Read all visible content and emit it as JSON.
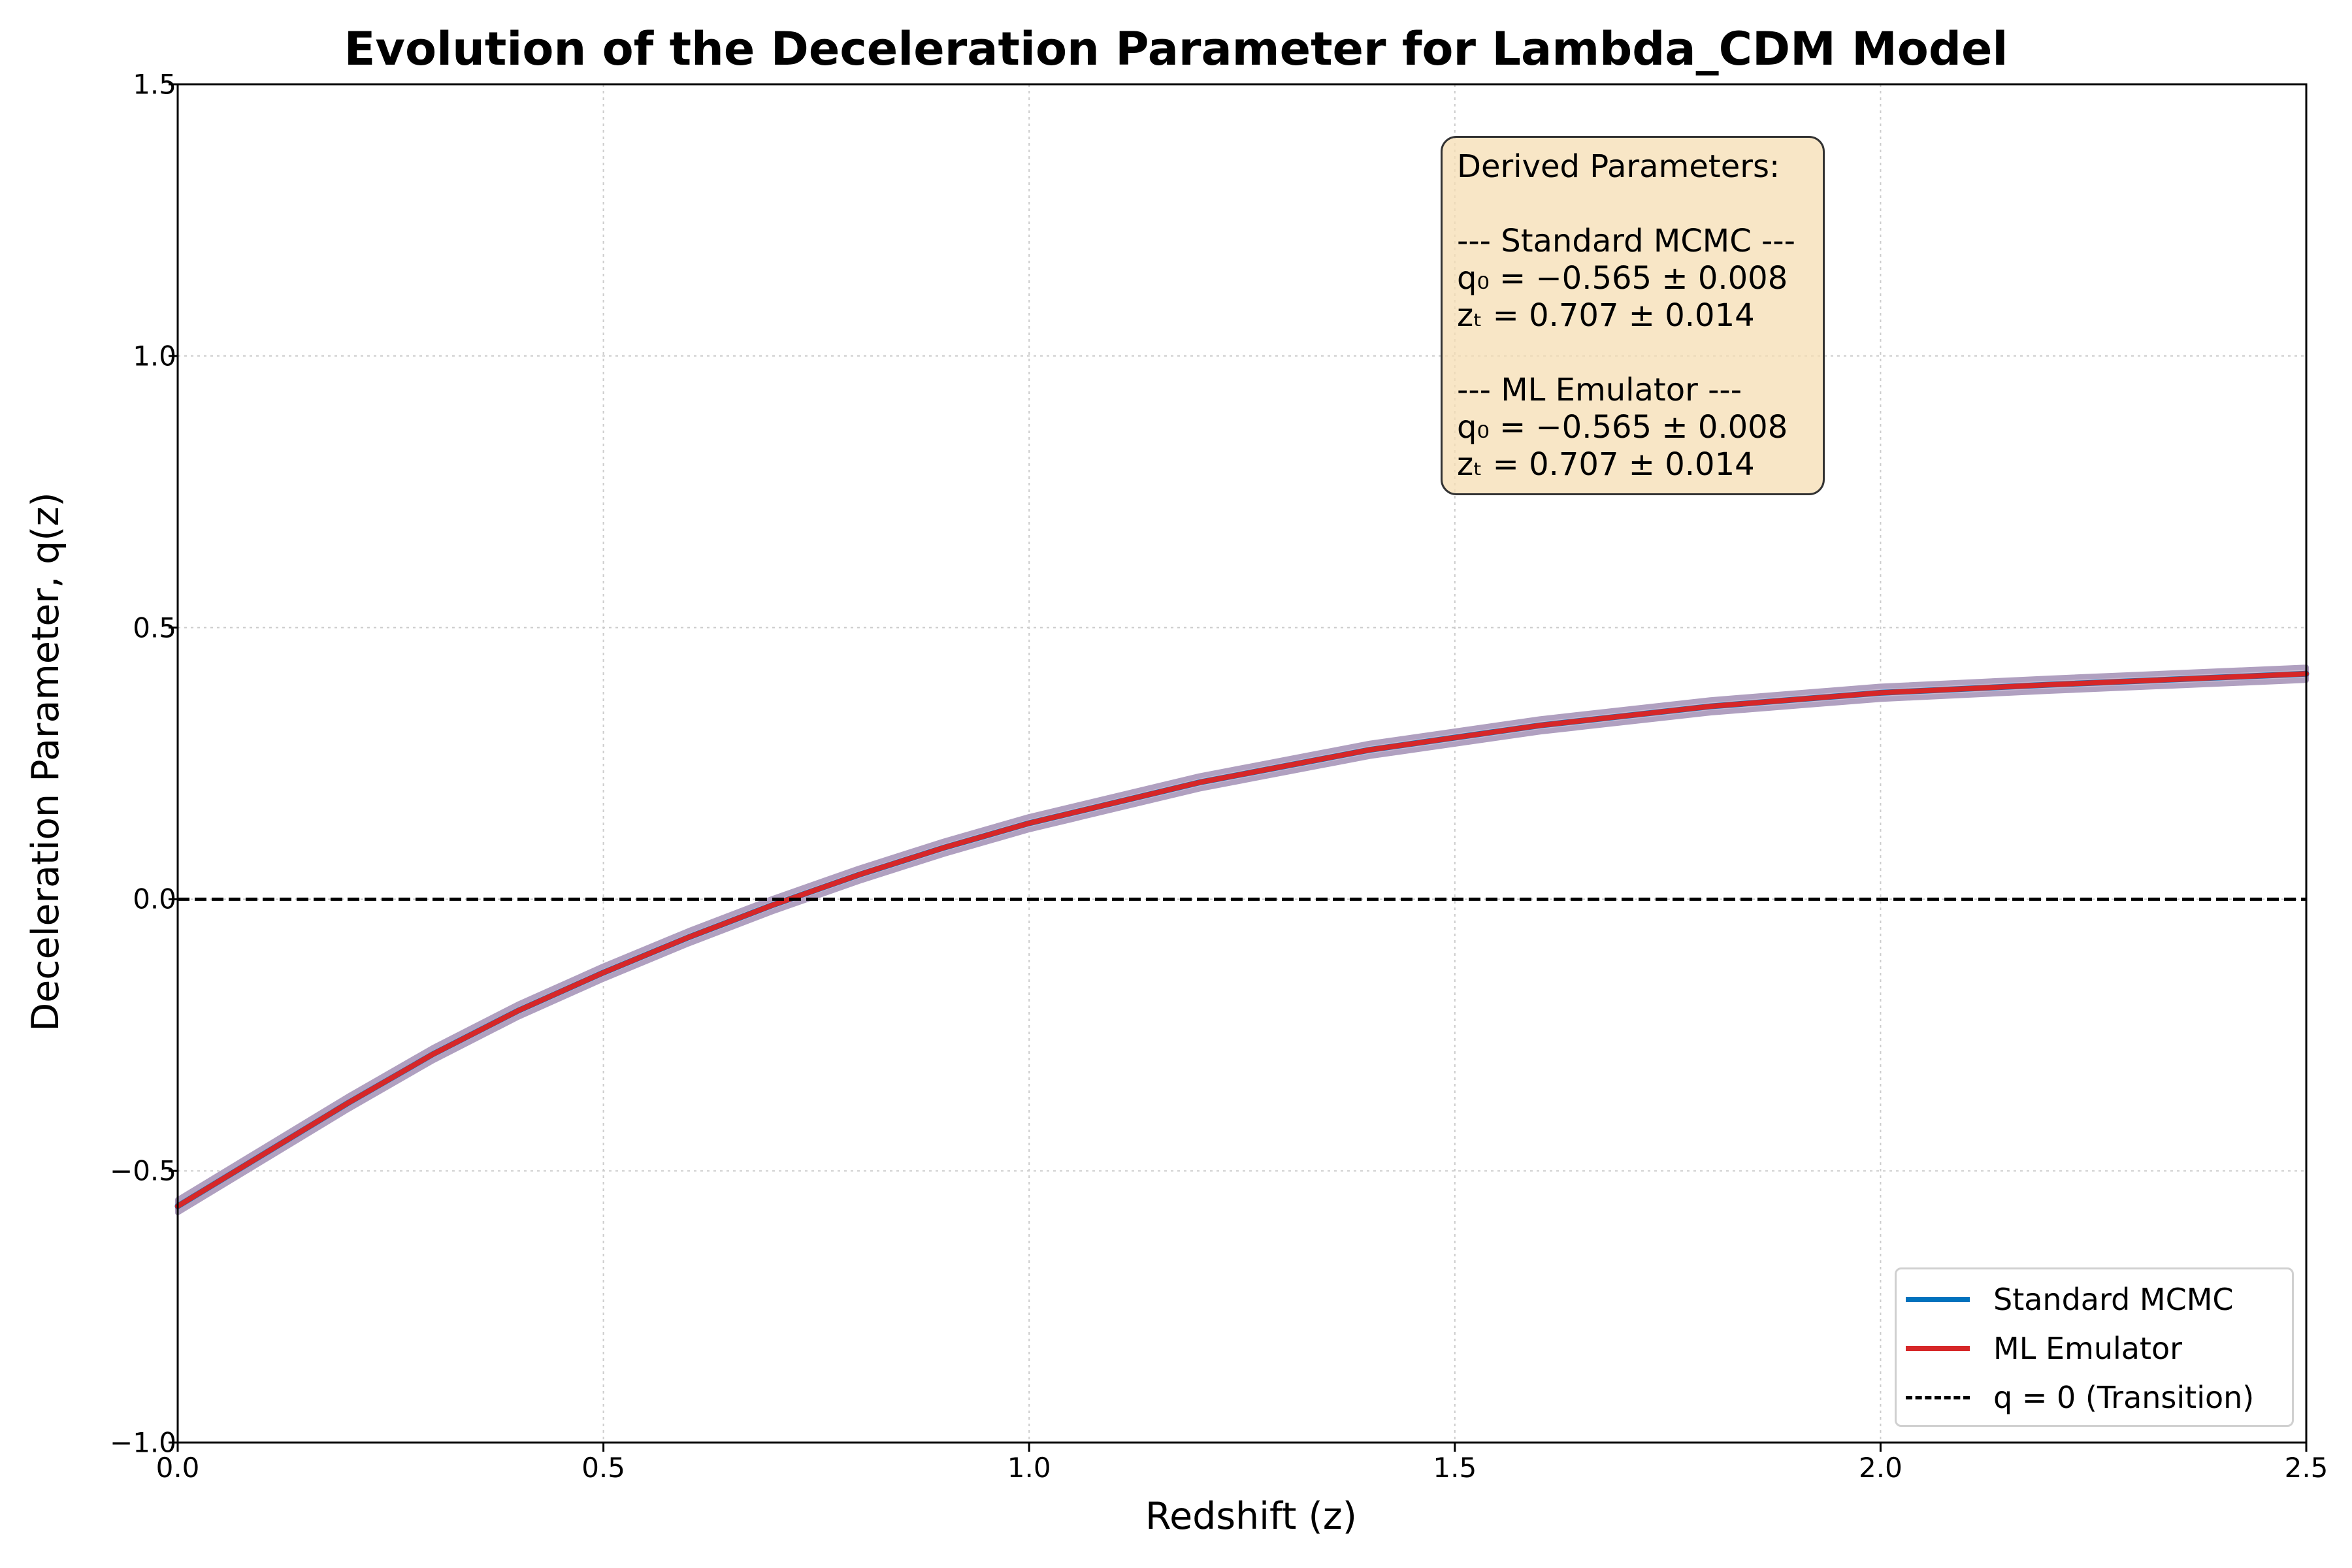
{
  "chart_data": {
    "type": "line",
    "title": "Evolution of the Deceleration Parameter for Lambda_CDM Model",
    "xlabel": "Redshift (z)",
    "ylabel": "Deceleration Parameter, q(z)",
    "xlim": [
      0.0,
      2.5
    ],
    "ylim": [
      -1.0,
      1.5
    ],
    "x_ticks": [
      "0.0",
      "0.5",
      "1.0",
      "1.5",
      "2.0",
      "2.5"
    ],
    "y_ticks": [
      "−1.0",
      "−0.5",
      "0.0",
      "0.5",
      "1.0",
      "1.5"
    ],
    "x_tick_values": [
      0.0,
      0.5,
      1.0,
      1.5,
      2.0,
      2.5
    ],
    "y_tick_values": [
      -1.0,
      -0.5,
      0.0,
      0.5,
      1.0,
      1.5
    ],
    "grid": true,
    "x": [
      0.0,
      0.1,
      0.2,
      0.3,
      0.4,
      0.5,
      0.6,
      0.7,
      0.8,
      0.9,
      1.0,
      1.2,
      1.4,
      1.6,
      1.8,
      2.0,
      2.2,
      2.5
    ],
    "series": [
      {
        "name": "Standard MCMC",
        "color": "#0072bd",
        "values": [
          -0.565,
          -0.47,
          -0.375,
          -0.285,
          -0.205,
          -0.135,
          -0.07,
          -0.01,
          0.045,
          0.095,
          0.14,
          0.215,
          0.275,
          0.32,
          0.355,
          0.38,
          0.395,
          0.415
        ]
      },
      {
        "name": "ML Emulator",
        "color": "#d62728",
        "values": [
          -0.565,
          -0.47,
          -0.375,
          -0.285,
          -0.205,
          -0.135,
          -0.07,
          -0.01,
          0.045,
          0.095,
          0.14,
          0.215,
          0.275,
          0.32,
          0.355,
          0.38,
          0.395,
          0.415
        ]
      }
    ],
    "uncertainty_band": {
      "half_width": 0.012,
      "color": "#b0a0c0"
    },
    "reference_line": {
      "name": "q = 0 (Transition)",
      "y": 0.0,
      "color": "#000000",
      "style": "dashed"
    },
    "legend_position": "lower-right",
    "legend": {
      "entries": [
        {
          "label": "Standard MCMC",
          "color": "#0072bd",
          "style": "solid"
        },
        {
          "label": "ML Emulator",
          "color": "#d62728",
          "style": "solid"
        },
        {
          "label": "q = 0 (Transition)",
          "color": "#000000",
          "style": "dashed"
        }
      ]
    },
    "annotation": {
      "heading": "Derived Parameters:",
      "mcmc_header": "--- Standard MCMC ---",
      "mcmc_q0": "q₀ = −0.565 ± 0.008",
      "mcmc_zt": "zₜ = 0.707 ± 0.014",
      "ml_header": "--- ML Emulator ---",
      "ml_q0": "q₀ = −0.565 ± 0.008",
      "ml_zt": "zₜ = 0.707 ± 0.014",
      "background": "#f5deb3"
    }
  }
}
